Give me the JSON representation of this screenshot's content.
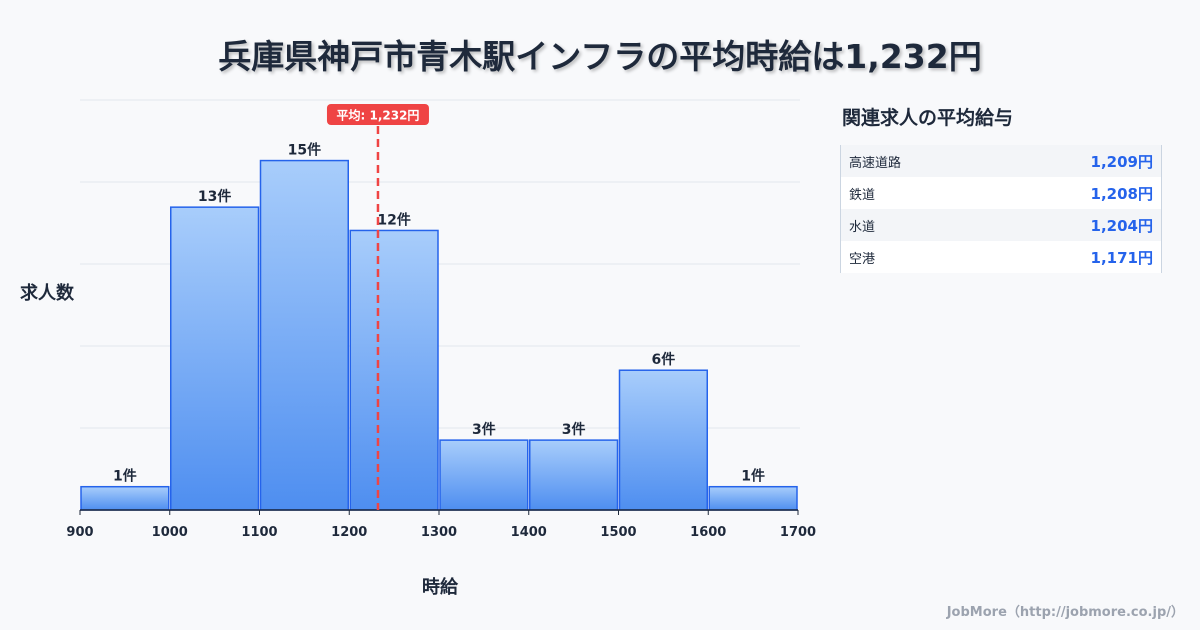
{
  "title": "兵庫県神戸市青木駅インフラの平均時給は1,232円",
  "chart_data": {
    "type": "bar",
    "title": "兵庫県神戸市青木駅インフラの平均時給は1,232円",
    "xlabel": "時給",
    "ylabel": "求人数",
    "bin_edges": [
      900,
      1000,
      1100,
      1200,
      1300,
      1400,
      1500,
      1600,
      1700
    ],
    "x_ticks": [
      "900",
      "1000",
      "1100",
      "1200",
      "1300",
      "1400",
      "1500",
      "1600",
      "1700"
    ],
    "values": [
      1,
      13,
      15,
      12,
      3,
      3,
      6,
      1
    ],
    "value_labels": [
      "1件",
      "13件",
      "15件",
      "12件",
      "3件",
      "3件",
      "6件",
      "1件"
    ],
    "xlim": [
      900,
      1700
    ],
    "ylim": [
      0,
      17.6
    ],
    "grid": true,
    "mean": 1232,
    "mean_label": "平均: 1,232円",
    "colors": {
      "bar_top": "#a8cdfb",
      "bar_bottom": "#4e8ef0",
      "bar_edge": "#2563eb",
      "mean": "#ef4444"
    }
  },
  "side": {
    "title": "関連求人の平均給与",
    "rows": [
      {
        "name": "高速道路",
        "value": "1,209円"
      },
      {
        "name": "鉄道",
        "value": "1,208円"
      },
      {
        "name": "水道",
        "value": "1,204円"
      },
      {
        "name": "空港",
        "value": "1,171円"
      }
    ]
  },
  "footer": "JobMore（http://jobmore.co.jp/）"
}
